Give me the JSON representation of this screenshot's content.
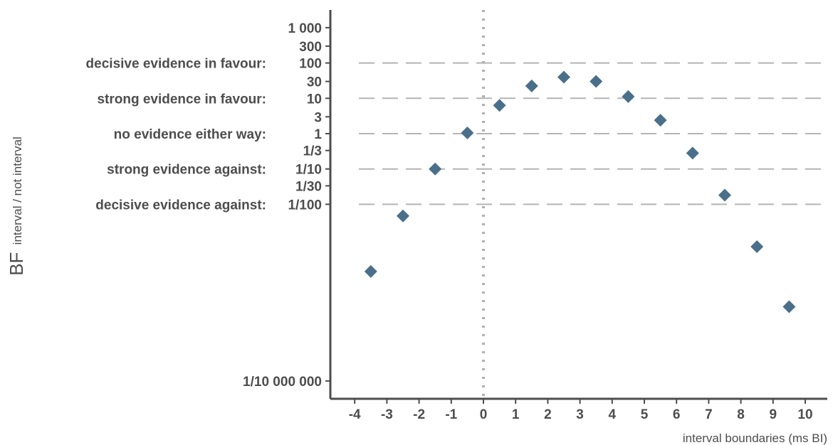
{
  "chart_data": {
    "type": "scatter",
    "title": "",
    "xlabel": "interval boundaries (ms BI)",
    "ylabel_main": "BF",
    "ylabel_sub": "interval / not interval",
    "y_scale": "log10",
    "xlim": [
      -4.4,
      10.6
    ],
    "ylim_log10": [
      -7.5,
      3.5
    ],
    "x_ticks": [
      -4,
      -3,
      -2,
      -1,
      0,
      1,
      2,
      3,
      4,
      5,
      6,
      7,
      8,
      9,
      10
    ],
    "y_ticks": [
      {
        "log10": 3,
        "label": "1 000"
      },
      {
        "log10": 2.477,
        "label": "300"
      },
      {
        "log10": 2,
        "label": "100"
      },
      {
        "log10": 1.477,
        "label": "30"
      },
      {
        "log10": 1,
        "label": "10"
      },
      {
        "log10": 0.477,
        "label": "3"
      },
      {
        "log10": 0,
        "label": "1"
      },
      {
        "log10": -0.477,
        "label": "1/3"
      },
      {
        "log10": -1,
        "label": "1/10"
      },
      {
        "log10": -1.477,
        "label": "1/30"
      },
      {
        "log10": -2,
        "label": "1/100"
      },
      {
        "log10": -7,
        "label": "1/10 000 000"
      }
    ],
    "evidence_lines": [
      {
        "log10": 2,
        "label": "decisive evidence in favour:"
      },
      {
        "log10": 1,
        "label": "strong evidence in favour:"
      },
      {
        "log10": 0,
        "label": "no evidence either way:"
      },
      {
        "log10": -1,
        "label": "strong evidence against:"
      },
      {
        "log10": -2,
        "label": "decisive evidence against:"
      }
    ],
    "vline_x": 0,
    "marker": "diamond",
    "color": "#4a6f8a",
    "points": [
      {
        "x": -3.5,
        "log10_bf": -3.9
      },
      {
        "x": -2.5,
        "log10_bf": -2.33
      },
      {
        "x": -1.5,
        "log10_bf": -1.0
      },
      {
        "x": -0.5,
        "log10_bf": 0.02
      },
      {
        "x": 0.5,
        "log10_bf": 0.8
      },
      {
        "x": 1.5,
        "log10_bf": 1.35
      },
      {
        "x": 2.5,
        "log10_bf": 1.6
      },
      {
        "x": 3.5,
        "log10_bf": 1.48
      },
      {
        "x": 4.5,
        "log10_bf": 1.05
      },
      {
        "x": 5.5,
        "log10_bf": 0.38
      },
      {
        "x": 6.5,
        "log10_bf": -0.55
      },
      {
        "x": 7.5,
        "log10_bf": -1.74
      },
      {
        "x": 8.5,
        "log10_bf": -3.2
      },
      {
        "x": 9.5,
        "log10_bf": -4.9
      }
    ]
  }
}
